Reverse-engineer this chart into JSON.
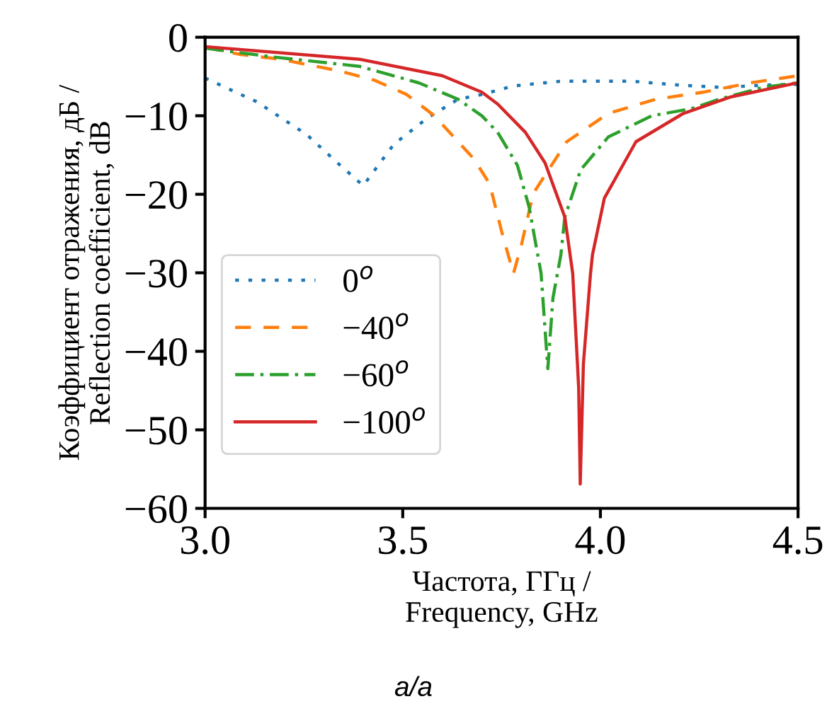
{
  "chart_data": {
    "type": "line",
    "xlabel": "Частота, ГГц /\nFrequency, GHz",
    "ylabel": "Коэффициент отражения, дБ /\nReflection coefficient, dB",
    "annotations": [
      "a/a"
    ],
    "xlim": [
      3.0,
      4.5
    ],
    "xticks": [
      {
        "value": 3.0,
        "label": "3.0"
      },
      3.5,
      {
        "value": 4.0,
        "label": "4.0"
      },
      4.5
    ],
    "ylim": [
      -60,
      0
    ],
    "yticks": [
      -60,
      -50,
      -40,
      -30,
      -20,
      -10,
      0
    ],
    "grid": false,
    "legend": "lower left",
    "series": [
      {
        "name": "0$^{o}$",
        "color": "#1f77b4",
        "line_style": "dotted",
        "x": [
          3.0,
          3.13,
          3.257,
          3.335,
          3.4,
          3.478,
          3.562,
          3.64,
          3.7,
          3.78,
          3.9,
          4.08,
          4.2,
          4.31,
          4.41,
          4.5
        ],
        "values": [
          -5.2,
          -8.2,
          -12.4,
          -16.0,
          -18.9,
          -13.6,
          -10.3,
          -7.9,
          -7.3,
          -6.2,
          -5.6,
          -5.6,
          -6.1,
          -6.4,
          -6.1,
          -6.0
        ]
      },
      {
        "name": "−40$^{o}$",
        "color": "#ff7f0e",
        "line_style": "dashed",
        "x": [
          3.0,
          3.09,
          3.19,
          3.34,
          3.43,
          3.51,
          3.58,
          3.68,
          3.72,
          3.75,
          3.78,
          3.8,
          3.83,
          3.915,
          4.02,
          4.14,
          4.26,
          4.38,
          4.5
        ],
        "values": [
          -1.3,
          -2.2,
          -2.8,
          -4.3,
          -5.5,
          -7.3,
          -10.0,
          -15.5,
          -18.7,
          -24.7,
          -30.1,
          -26.5,
          -19.9,
          -13.3,
          -9.7,
          -7.9,
          -7.0,
          -5.8,
          -4.9
        ]
      },
      {
        "name": "−60$^{o}$",
        "color": "#2ca02c",
        "line_style": "dashdot",
        "x": [
          3.0,
          3.17,
          3.39,
          3.54,
          3.64,
          3.7,
          3.74,
          3.79,
          3.82,
          3.85,
          3.867,
          3.88,
          3.9,
          3.91,
          3.95,
          4.02,
          4.13,
          4.23,
          4.3,
          4.41,
          4.5
        ],
        "values": [
          -1.4,
          -2.5,
          -3.7,
          -5.8,
          -7.9,
          -10.0,
          -12.1,
          -16.3,
          -21.7,
          -30.1,
          -42.2,
          -33.2,
          -27.7,
          -22.9,
          -16.9,
          -12.7,
          -10.0,
          -9.1,
          -7.9,
          -6.4,
          -5.8
        ]
      },
      {
        "name": "−100$^{o}$",
        "color": "#d62728",
        "line_style": "solid",
        "x": [
          3.0,
          3.39,
          3.6,
          3.7,
          3.74,
          3.81,
          3.86,
          3.91,
          3.93,
          3.945,
          3.949,
          3.957,
          3.975,
          3.98,
          4.01,
          4.09,
          4.21,
          4.33,
          4.5
        ],
        "values": [
          -1.2,
          -2.8,
          -4.9,
          -7.0,
          -8.5,
          -12.1,
          -16.0,
          -22.9,
          -30.1,
          -44.6,
          -56.9,
          -41.6,
          -30.1,
          -27.7,
          -20.5,
          -13.3,
          -9.7,
          -7.6,
          -5.8
        ]
      }
    ]
  }
}
